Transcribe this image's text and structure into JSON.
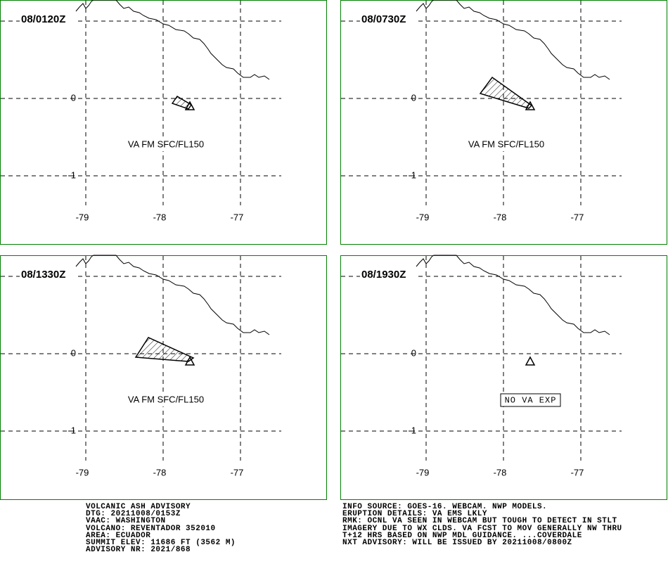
{
  "panels": [
    {
      "time": "08/0120Z",
      "label": "VA FM SFC/FL150"
    },
    {
      "time": "08/0730Z",
      "label": "VA FM SFC/FL150"
    },
    {
      "time": "08/1330Z",
      "label": "VA FM SFC/FL150"
    },
    {
      "time": "08/1930Z",
      "label": "NO VA EXP"
    }
  ],
  "grid": {
    "lon_labels": [
      "-79",
      "-78",
      "-77"
    ],
    "lat_labels": [
      "0",
      "-1"
    ]
  },
  "advisory": {
    "left": [
      "VOLCANIC ASH ADVISORY",
      "DTG: 20211008/0153Z",
      "VAAC: WASHINGTON",
      "VOLCANO: REVENTADOR 352010",
      "AREA: ECUADOR",
      "SUMMIT ELEV: 11686 FT (3562 M)",
      "ADVISORY NR: 2021/868"
    ],
    "right": [
      "INFO SOURCE: GOES-16. WEBCAM. NWP MODELS.",
      "ERUPTION DETAILS: VA EMS LKLY",
      "RMK: OCNL VA SEEN IN WEBCAM BUT TOUGH TO DETECT IN STLT",
      "IMAGERY DUE TO WX CLDS. VA FCST TO MOV GENERALLY NW THRU",
      "T+12 HRS BASED ON NWP MDL GUIDANCE. ...COVERDALE",
      "NXT ADVISORY: WILL BE ISSUED BY 20211008/0800Z"
    ]
  }
}
